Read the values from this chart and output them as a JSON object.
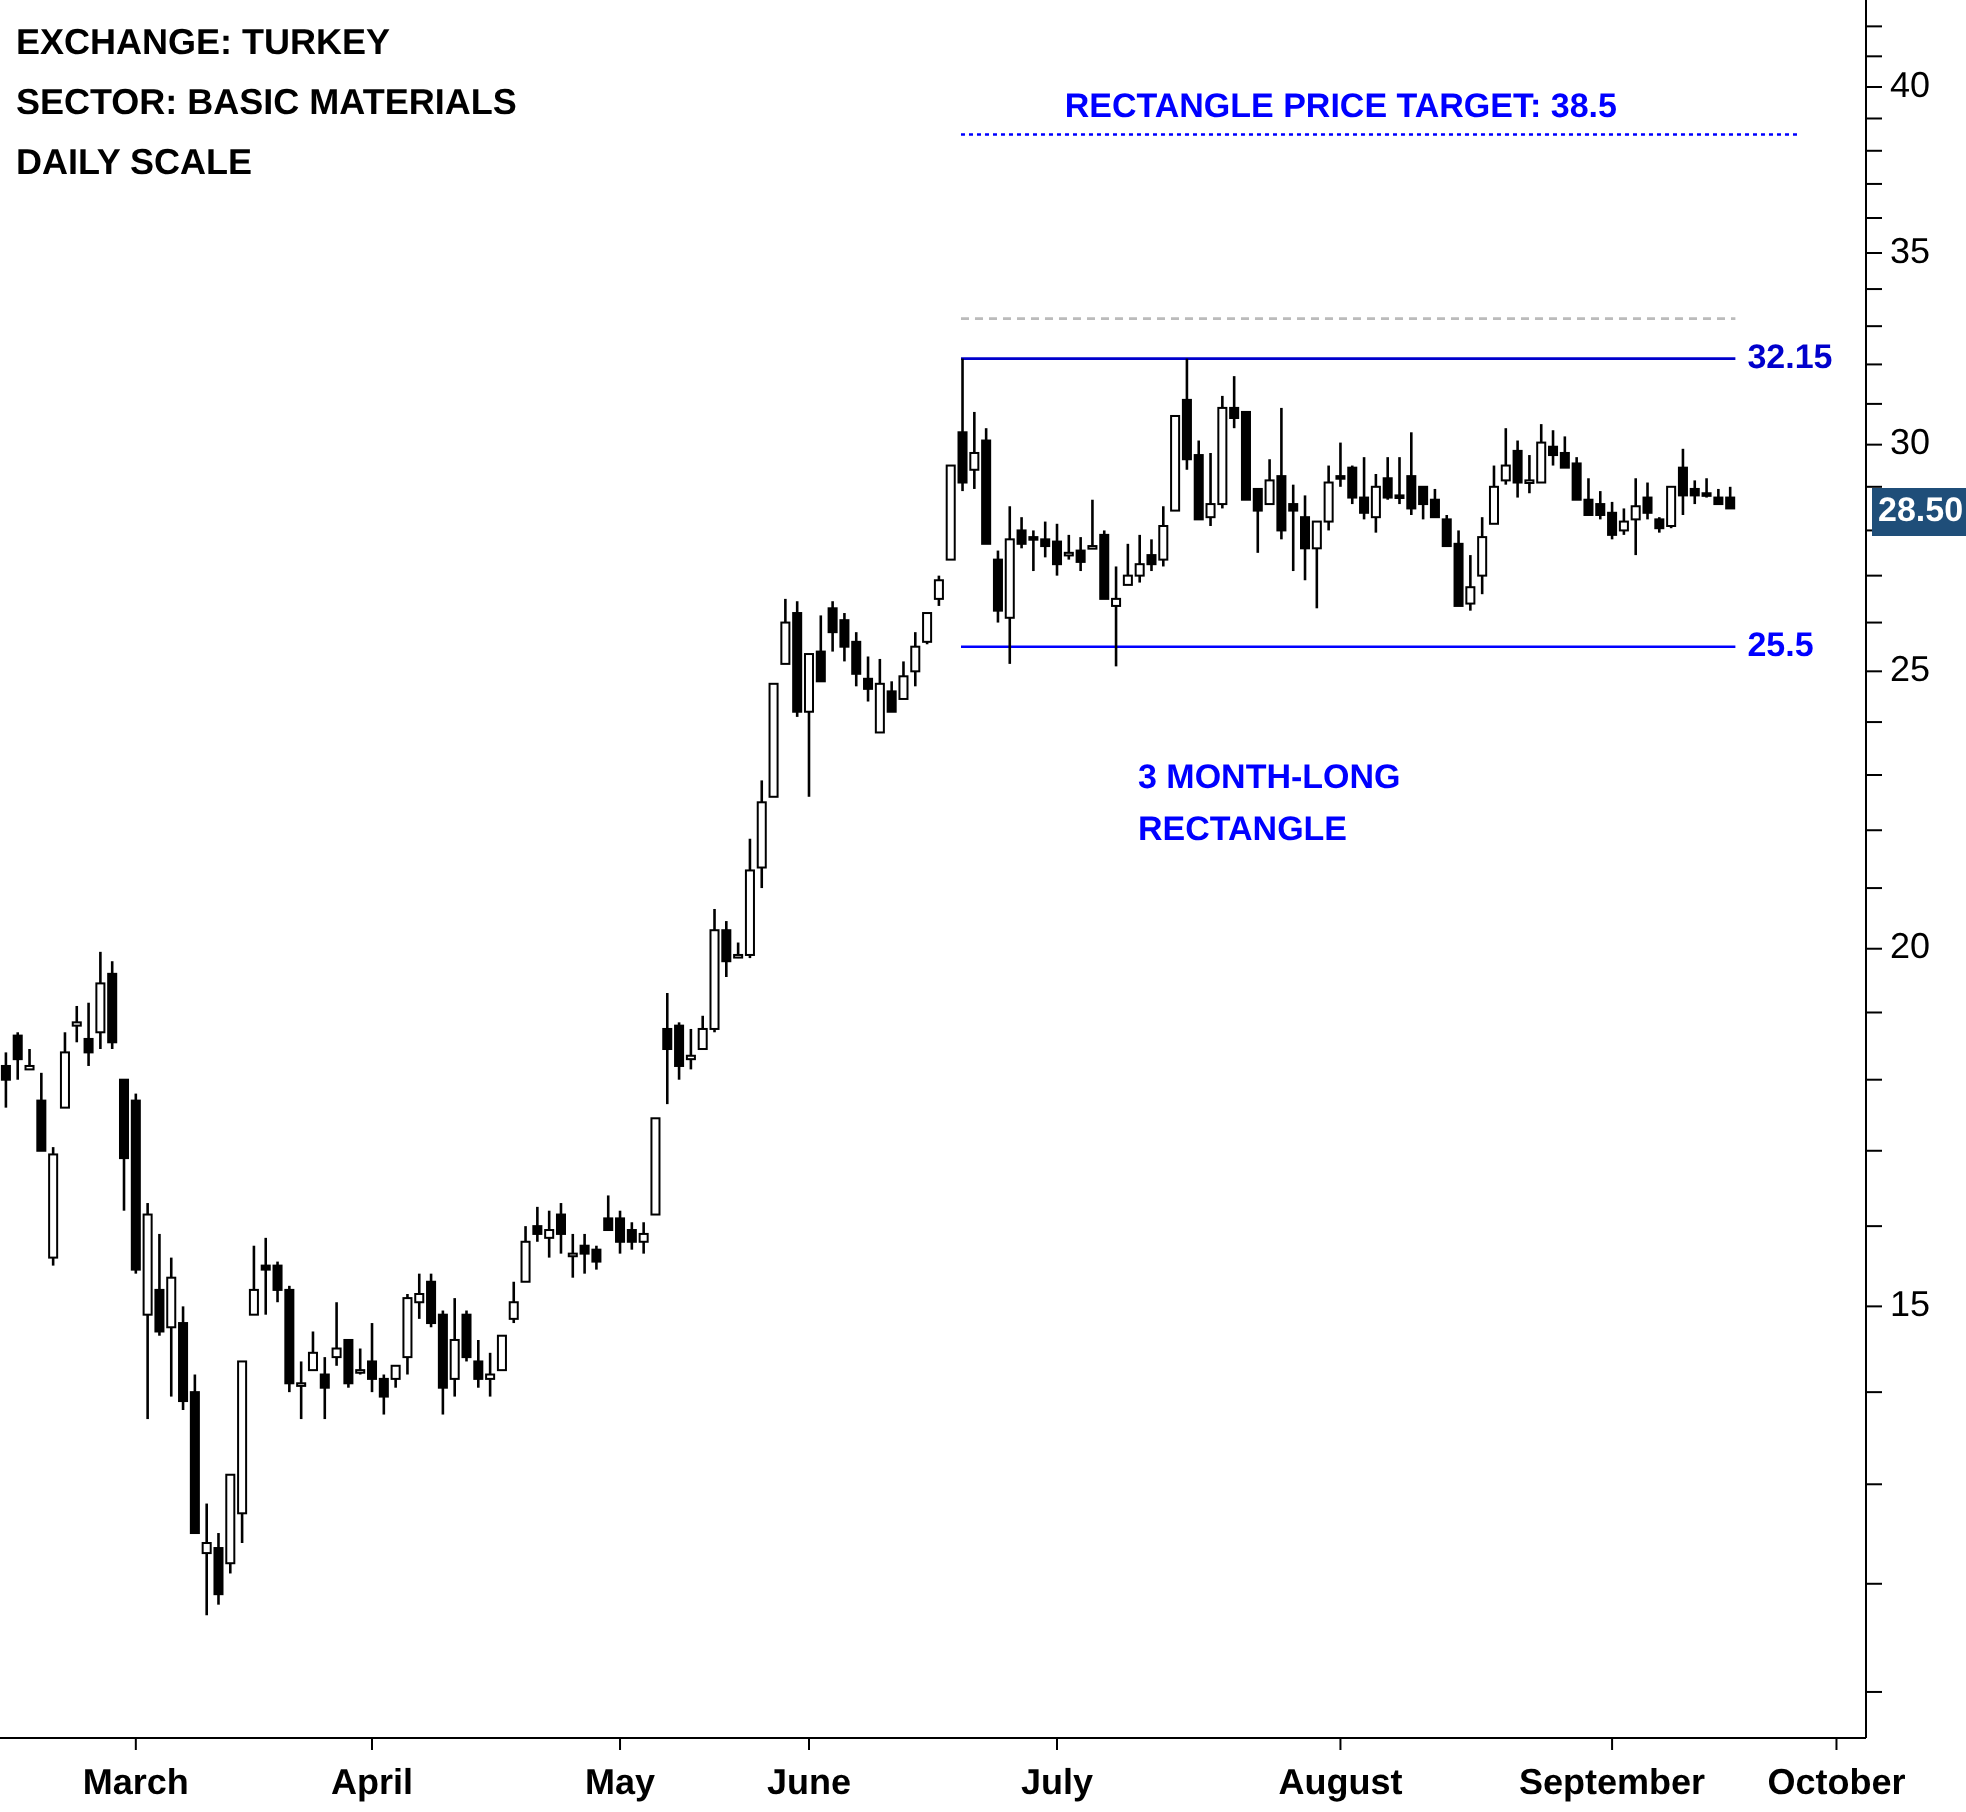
{
  "chart_data": {
    "type": "candlestick",
    "title": "EXCHANGE: TURKEY",
    "subtitle": "SECTOR: BASIC MATERIALS",
    "annotations": [
      "DAILY SCALE",
      "3 MONTH-LONG RECTANGLE",
      "28.50"
    ],
    "color": "#000000",
    "categories": [
      null,
      null,
      null,
      null,
      null,
      null,
      null,
      null,
      null,
      null,
      null,
      "March",
      null,
      null,
      null,
      null,
      null,
      null,
      null,
      null,
      null,
      null,
      null,
      null,
      null,
      null,
      null,
      null,
      null,
      null,
      null,
      "April",
      null,
      null,
      null,
      null,
      null,
      null,
      null,
      null,
      null,
      null,
      null,
      null,
      null,
      null,
      null,
      null,
      null,
      null,
      null,
      null,
      "May",
      null,
      null,
      null,
      null,
      null,
      null,
      null,
      null,
      null,
      null,
      null,
      null,
      null,
      null,
      null,
      "June",
      null,
      null,
      null,
      null,
      null,
      null,
      null,
      null,
      null,
      null,
      null,
      null,
      null,
      null,
      null,
      null,
      null,
      null,
      null,
      null,
      "July",
      null,
      null,
      null,
      null,
      null,
      null,
      null,
      null,
      null,
      null,
      null,
      null,
      null,
      null,
      null,
      null,
      null,
      null,
      null,
      null,
      null,
      null,
      null,
      "August",
      null,
      null,
      null,
      null,
      null,
      null,
      null,
      null,
      null,
      null,
      null,
      null,
      null,
      null,
      null,
      null,
      null,
      null,
      null,
      null,
      null,
      null,
      "September",
      null,
      null,
      null,
      null,
      null,
      null,
      null,
      null,
      null,
      null,
      null,
      null,
      null,
      null,
      null,
      null,
      null,
      null,
      "October",
      null,
      null
    ],
    "ohlc": [
      [
        18.2,
        18.4,
        17.6,
        18.0
      ],
      [
        18.65,
        18.7,
        18.0,
        18.3
      ],
      [
        18.15,
        18.45,
        18.15,
        18.2
      ],
      [
        17.7,
        18.1,
        17.0,
        17.0
      ],
      [
        15.6,
        17.05,
        15.5,
        16.95
      ],
      [
        17.6,
        18.7,
        17.6,
        18.4
      ],
      [
        18.8,
        19.1,
        18.55,
        18.85
      ],
      [
        18.6,
        19.15,
        18.2,
        18.4
      ],
      [
        18.7,
        19.95,
        18.45,
        19.45
      ],
      [
        19.6,
        19.8,
        18.45,
        18.55
      ],
      [
        18.0,
        18.0,
        16.2,
        16.9
      ],
      [
        17.7,
        17.8,
        15.4,
        15.45
      ],
      [
        14.9,
        16.3,
        13.7,
        16.15
      ],
      [
        15.2,
        15.9,
        14.65,
        14.7
      ],
      [
        14.75,
        15.6,
        13.95,
        15.35
      ],
      [
        14.8,
        15.0,
        13.8,
        13.9
      ],
      [
        14.0,
        14.2,
        12.5,
        12.5
      ],
      [
        12.3,
        12.8,
        11.7,
        12.4
      ],
      [
        12.35,
        12.5,
        11.8,
        11.9
      ],
      [
        12.2,
        13.1,
        12.1,
        13.1
      ],
      [
        12.7,
        14.35,
        12.4,
        14.35
      ],
      [
        14.9,
        15.75,
        14.9,
        15.2
      ],
      [
        15.5,
        15.85,
        14.9,
        15.45
      ],
      [
        15.5,
        15.55,
        15.05,
        15.2
      ],
      [
        15.2,
        15.25,
        14.0,
        14.1
      ],
      [
        14.1,
        14.35,
        13.7,
        14.1
      ],
      [
        14.25,
        14.7,
        14.25,
        14.45
      ],
      [
        14.2,
        14.4,
        13.7,
        14.05
      ],
      [
        14.4,
        15.05,
        14.3,
        14.5
      ],
      [
        14.6,
        14.6,
        14.05,
        14.1
      ],
      [
        14.25,
        14.5,
        14.2,
        14.25
      ],
      [
        14.35,
        14.8,
        14.0,
        14.15
      ],
      [
        14.15,
        14.2,
        13.75,
        13.95
      ],
      [
        14.15,
        14.3,
        14.05,
        14.3
      ],
      [
        14.4,
        15.15,
        14.2,
        15.1
      ],
      [
        15.05,
        15.4,
        14.85,
        15.15
      ],
      [
        15.3,
        15.4,
        14.75,
        14.8
      ],
      [
        14.9,
        14.95,
        13.75,
        14.05
      ],
      [
        14.15,
        15.1,
        13.95,
        14.6
      ],
      [
        14.9,
        14.95,
        14.35,
        14.4
      ],
      [
        14.35,
        14.6,
        14.05,
        14.15
      ],
      [
        14.15,
        14.45,
        13.95,
        14.2
      ],
      [
        14.25,
        14.65,
        14.25,
        14.65
      ],
      [
        14.85,
        15.3,
        14.8,
        15.05
      ],
      [
        15.3,
        16.0,
        15.3,
        15.8
      ],
      [
        16.0,
        16.25,
        15.8,
        15.9
      ],
      [
        15.85,
        16.2,
        15.6,
        15.95
      ],
      [
        16.15,
        16.3,
        15.65,
        15.9
      ],
      [
        15.65,
        15.9,
        15.35,
        15.65
      ],
      [
        15.75,
        15.9,
        15.4,
        15.65
      ],
      [
        15.7,
        15.75,
        15.45,
        15.55
      ],
      [
        16.1,
        16.4,
        15.95,
        15.95
      ],
      [
        16.1,
        16.2,
        15.65,
        15.8
      ],
      [
        15.95,
        16.05,
        15.7,
        15.8
      ],
      [
        15.8,
        16.05,
        15.65,
        15.9
      ],
      [
        16.15,
        17.45,
        16.15,
        17.45
      ],
      [
        18.75,
        19.3,
        17.65,
        18.45
      ],
      [
        18.8,
        18.85,
        18.0,
        18.2
      ],
      [
        18.3,
        18.75,
        18.15,
        18.35
      ],
      [
        18.45,
        18.95,
        18.45,
        18.75
      ],
      [
        18.75,
        20.65,
        18.7,
        20.3
      ],
      [
        20.3,
        20.45,
        19.55,
        19.8
      ],
      [
        19.9,
        20.1,
        19.85,
        19.9
      ],
      [
        19.9,
        21.85,
        19.85,
        21.3
      ],
      [
        21.35,
        22.9,
        21.0,
        22.5
      ],
      [
        22.6,
        24.75,
        22.6,
        24.75
      ],
      [
        25.15,
        26.5,
        25.15,
        26.0
      ],
      [
        26.2,
        26.45,
        24.1,
        24.2
      ],
      [
        24.2,
        25.35,
        22.6,
        25.35
      ],
      [
        25.4,
        26.15,
        24.8,
        24.8
      ],
      [
        26.3,
        26.45,
        25.4,
        25.8
      ],
      [
        26.05,
        26.2,
        25.2,
        25.5
      ],
      [
        25.6,
        25.8,
        24.7,
        24.95
      ],
      [
        24.85,
        25.3,
        24.4,
        24.65
      ],
      [
        23.8,
        25.25,
        23.8,
        24.75
      ],
      [
        24.6,
        24.8,
        24.2,
        24.2
      ],
      [
        24.45,
        25.2,
        24.45,
        24.9
      ],
      [
        25.0,
        25.8,
        24.7,
        25.5
      ],
      [
        25.6,
        26.2,
        25.55,
        26.2
      ],
      [
        26.5,
        27.0,
        26.35,
        26.9
      ],
      [
        27.35,
        29.5,
        27.35,
        29.5
      ],
      [
        30.3,
        32.15,
        28.9,
        29.1
      ],
      [
        29.4,
        30.8,
        28.95,
        29.8
      ],
      [
        30.1,
        30.4,
        27.7,
        27.7
      ],
      [
        27.35,
        27.55,
        26.0,
        26.25
      ],
      [
        26.1,
        28.55,
        25.15,
        27.8
      ],
      [
        28.0,
        28.3,
        27.6,
        27.7
      ],
      [
        27.85,
        28.0,
        27.1,
        27.8
      ],
      [
        27.8,
        28.2,
        27.4,
        27.65
      ],
      [
        27.75,
        28.15,
        27.0,
        27.25
      ],
      [
        27.5,
        27.9,
        27.35,
        27.5
      ],
      [
        27.55,
        27.85,
        27.1,
        27.3
      ],
      [
        27.65,
        28.7,
        27.6,
        27.65
      ],
      [
        27.9,
        28.0,
        26.5,
        26.5
      ],
      [
        26.35,
        27.2,
        25.1,
        26.5
      ],
      [
        26.8,
        27.7,
        26.8,
        27.0
      ],
      [
        27.0,
        27.9,
        26.85,
        27.25
      ],
      [
        27.45,
        27.8,
        27.1,
        27.25
      ],
      [
        27.35,
        28.55,
        27.2,
        28.1
      ],
      [
        28.45,
        30.7,
        28.45,
        30.7
      ],
      [
        31.1,
        32.15,
        29.4,
        29.65
      ],
      [
        29.75,
        30.1,
        28.25,
        28.25
      ],
      [
        28.3,
        29.8,
        28.1,
        28.6
      ],
      [
        28.6,
        31.2,
        28.5,
        30.9
      ],
      [
        30.9,
        31.7,
        30.4,
        30.65
      ],
      [
        30.8,
        30.8,
        28.7,
        28.7
      ],
      [
        28.95,
        28.95,
        27.5,
        28.45
      ],
      [
        28.6,
        29.65,
        28.6,
        29.15
      ],
      [
        29.25,
        30.9,
        27.8,
        28.0
      ],
      [
        28.6,
        29.05,
        27.1,
        28.45
      ],
      [
        28.3,
        28.8,
        26.9,
        27.6
      ],
      [
        27.6,
        28.2,
        26.3,
        28.2
      ],
      [
        28.2,
        29.5,
        28.0,
        29.1
      ],
      [
        29.25,
        30.05,
        29.0,
        29.2
      ],
      [
        29.45,
        29.5,
        28.6,
        28.75
      ],
      [
        28.75,
        29.7,
        28.25,
        28.4
      ],
      [
        28.3,
        29.3,
        27.95,
        29.0
      ],
      [
        29.2,
        29.7,
        28.7,
        28.75
      ],
      [
        28.8,
        29.7,
        28.6,
        28.75
      ],
      [
        29.25,
        30.3,
        28.35,
        28.5
      ],
      [
        29.0,
        29.0,
        28.25,
        28.6
      ],
      [
        28.7,
        28.95,
        28.3,
        28.3
      ],
      [
        28.25,
        28.35,
        27.65,
        27.65
      ],
      [
        27.7,
        28.0,
        26.35,
        26.35
      ],
      [
        26.4,
        27.45,
        26.25,
        26.75
      ],
      [
        27.0,
        28.3,
        26.6,
        27.85
      ],
      [
        28.15,
        29.5,
        28.15,
        29.0
      ],
      [
        29.15,
        30.4,
        29.05,
        29.5
      ],
      [
        29.85,
        30.1,
        28.75,
        29.1
      ],
      [
        29.1,
        29.75,
        28.85,
        29.15
      ],
      [
        29.1,
        30.5,
        29.1,
        30.05
      ],
      [
        29.95,
        30.35,
        29.5,
        29.75
      ],
      [
        29.8,
        30.2,
        29.45,
        29.45
      ],
      [
        29.55,
        29.7,
        28.7,
        28.7
      ],
      [
        28.7,
        29.2,
        28.35,
        28.35
      ],
      [
        28.6,
        28.9,
        28.25,
        28.35
      ],
      [
        28.4,
        28.65,
        27.8,
        27.9
      ],
      [
        28.0,
        28.5,
        27.9,
        28.2
      ],
      [
        28.25,
        29.2,
        27.45,
        28.55
      ],
      [
        28.75,
        29.1,
        28.25,
        28.4
      ],
      [
        28.25,
        28.3,
        27.95,
        28.05
      ],
      [
        28.1,
        29.0,
        28.05,
        29.0
      ],
      [
        29.45,
        29.9,
        28.35,
        28.8
      ],
      [
        28.95,
        29.15,
        28.6,
        28.8
      ],
      [
        28.85,
        29.2,
        28.75,
        28.8
      ],
      [
        28.75,
        28.95,
        28.6,
        28.6
      ],
      [
        28.75,
        29.0,
        28.5,
        28.5
      ],
      null,
      null,
      null,
      null,
      null,
      null,
      null,
      null,
      null,
      null,
      null
    ],
    "log": "y",
    "ylim": [
      10.6,
      42.9
    ],
    "yticks": [
      {
        "value": 11,
        "label": null
      },
      {
        "value": 12,
        "label": null
      },
      {
        "value": 13,
        "label": null
      },
      {
        "value": 14,
        "label": null
      },
      15,
      {
        "value": 16,
        "label": null
      },
      {
        "value": 17,
        "label": null
      },
      {
        "value": 18,
        "label": null
      },
      {
        "value": 19,
        "label": null
      },
      20,
      {
        "value": 21,
        "label": null
      },
      {
        "value": 22,
        "label": null
      },
      {
        "value": 23,
        "label": null
      },
      {
        "value": 24,
        "label": null
      },
      25,
      {
        "value": 26,
        "label": null
      },
      {
        "value": 27,
        "label": null
      },
      {
        "value": 28,
        "label": null
      },
      {
        "value": 29,
        "label": null
      },
      30,
      {
        "value": 31,
        "label": null
      },
      {
        "value": 32,
        "label": null
      },
      {
        "value": 33,
        "label": null
      },
      {
        "value": 34,
        "label": null
      },
      35,
      {
        "value": 36,
        "label": null
      },
      {
        "value": 37,
        "label": null
      },
      {
        "value": 38,
        "label": null
      },
      {
        "value": 39,
        "label": null
      },
      40,
      {
        "value": 41,
        "label": null
      },
      {
        "value": 42,
        "label": null
      }
    ],
    "ref_lines": [
      {
        "axis": "y",
        "value": 38.5,
        "label": "RECTANGLE PRICE TARGET: 38.5",
        "color": "#0000ff",
        "line_style": "dotted"
      },
      {
        "axis": "y",
        "value": 33.2,
        "color": "#bbbbbb",
        "line_style": "dashed"
      },
      {
        "axis": "y",
        "value": 32.15,
        "label": "32.15",
        "color": "#0000cc",
        "line_style": "solid"
      },
      {
        "axis": "y",
        "value": 25.5,
        "label": "25.5",
        "color": "#0000ff",
        "line_style": "solid"
      }
    ]
  }
}
